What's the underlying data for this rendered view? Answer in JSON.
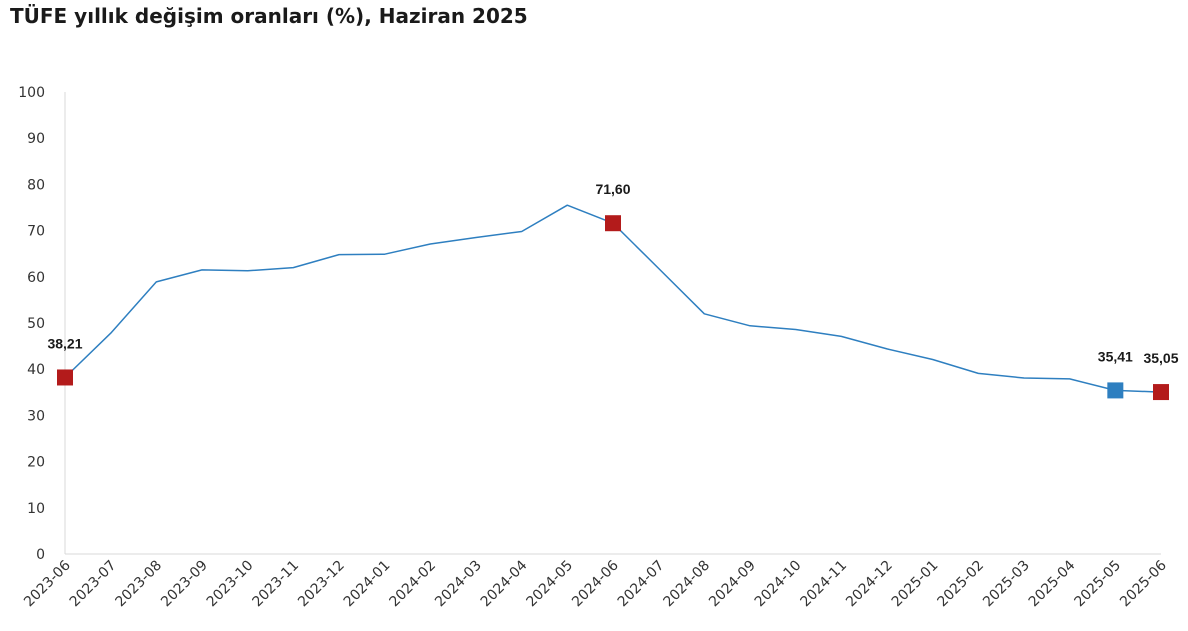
{
  "chart_data": {
    "type": "line",
    "title": "TÜFE yıllık değişim oranları (%), Haziran 2025",
    "xlabel": "",
    "ylabel": "",
    "ylim": [
      0,
      100
    ],
    "yticks": [
      "0",
      "10",
      "20",
      "30",
      "40",
      "50",
      "60",
      "70",
      "80",
      "90",
      "100"
    ],
    "grid": false,
    "legend": "none",
    "categories": [
      "2023-06",
      "2023-07",
      "2023-08",
      "2023-09",
      "2023-10",
      "2023-11",
      "2023-12",
      "2024-01",
      "2024-02",
      "2024-03",
      "2024-04",
      "2024-05",
      "2024-06",
      "2024-07",
      "2024-08",
      "2024-09",
      "2024-10",
      "2024-11",
      "2024-12",
      "2025-01",
      "2025-02",
      "2025-03",
      "2025-04",
      "2025-05",
      "2025-06"
    ],
    "series": [
      {
        "values": [
          38.21,
          47.8,
          58.9,
          61.5,
          61.3,
          62.0,
          64.8,
          64.9,
          67.1,
          68.5,
          69.8,
          75.5,
          71.6,
          61.8,
          52.0,
          49.4,
          48.6,
          47.1,
          44.4,
          42.1,
          39.1,
          38.1,
          37.9,
          35.41,
          35.05
        ],
        "color": "#2e7fc0"
      }
    ],
    "annotations": [
      {
        "index": 0,
        "label": "38,21",
        "marker_color": "#b31b1b"
      },
      {
        "index": 12,
        "label": "71,60",
        "marker_color": "#b31b1b"
      },
      {
        "index": 23,
        "label": "35,41",
        "marker_color": "#2e7fc0"
      },
      {
        "index": 24,
        "label": "35,05",
        "marker_color": "#b31b1b"
      }
    ]
  }
}
